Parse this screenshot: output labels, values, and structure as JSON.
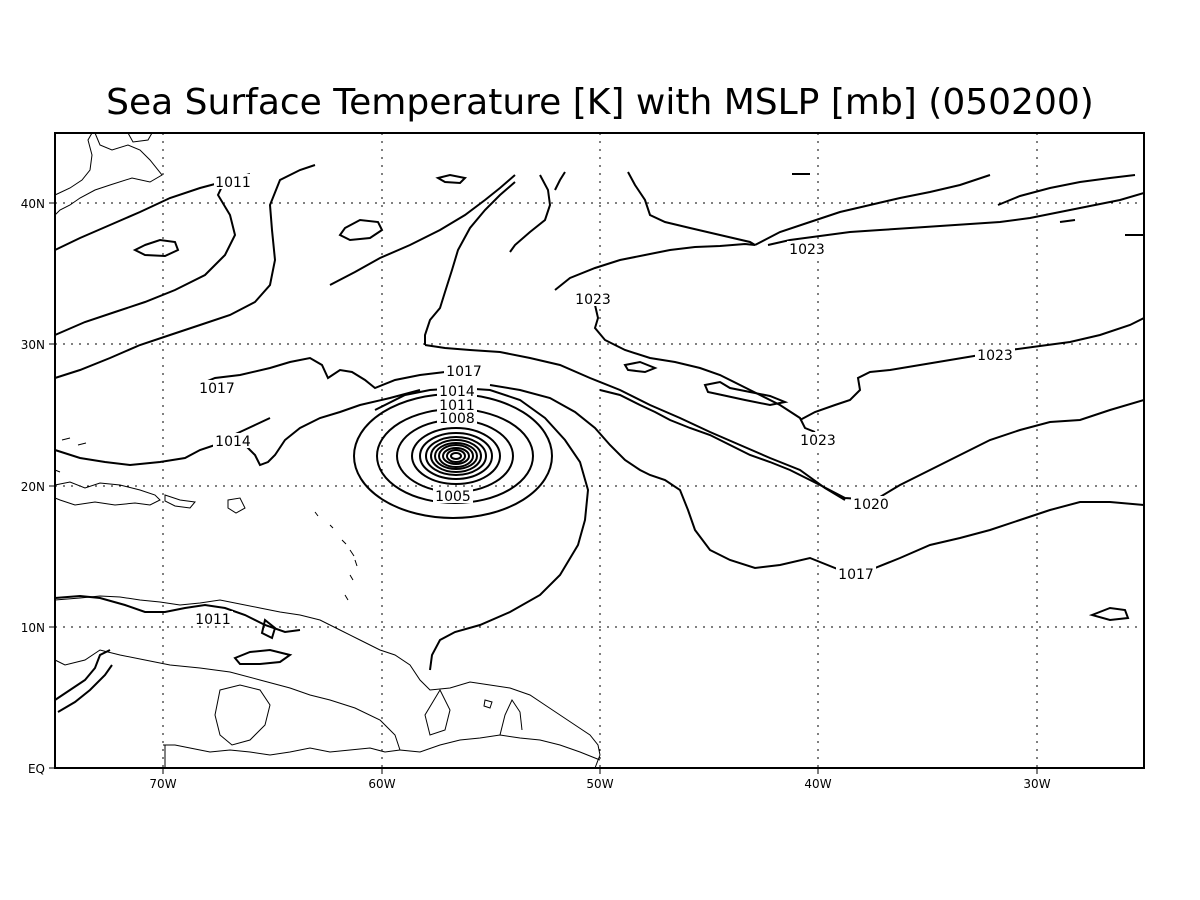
{
  "title": "Sea Surface Temperature [K] with MSLP [mb] (050200)",
  "axes": {
    "x_ticks": [
      "70W",
      "60W",
      "50W",
      "40W",
      "30W"
    ],
    "y_ticks": [
      "EQ",
      "10N",
      "20N",
      "30N",
      "40N"
    ]
  },
  "contour_labels": [
    "1011",
    "1017",
    "1014",
    "1011",
    "1017",
    "1014",
    "1011",
    "1008",
    "1005",
    "1023",
    "1023",
    "1023",
    "1023",
    "1020",
    "1017"
  ],
  "colors": {
    "lines": "#000000",
    "background": "#ffffff"
  }
}
